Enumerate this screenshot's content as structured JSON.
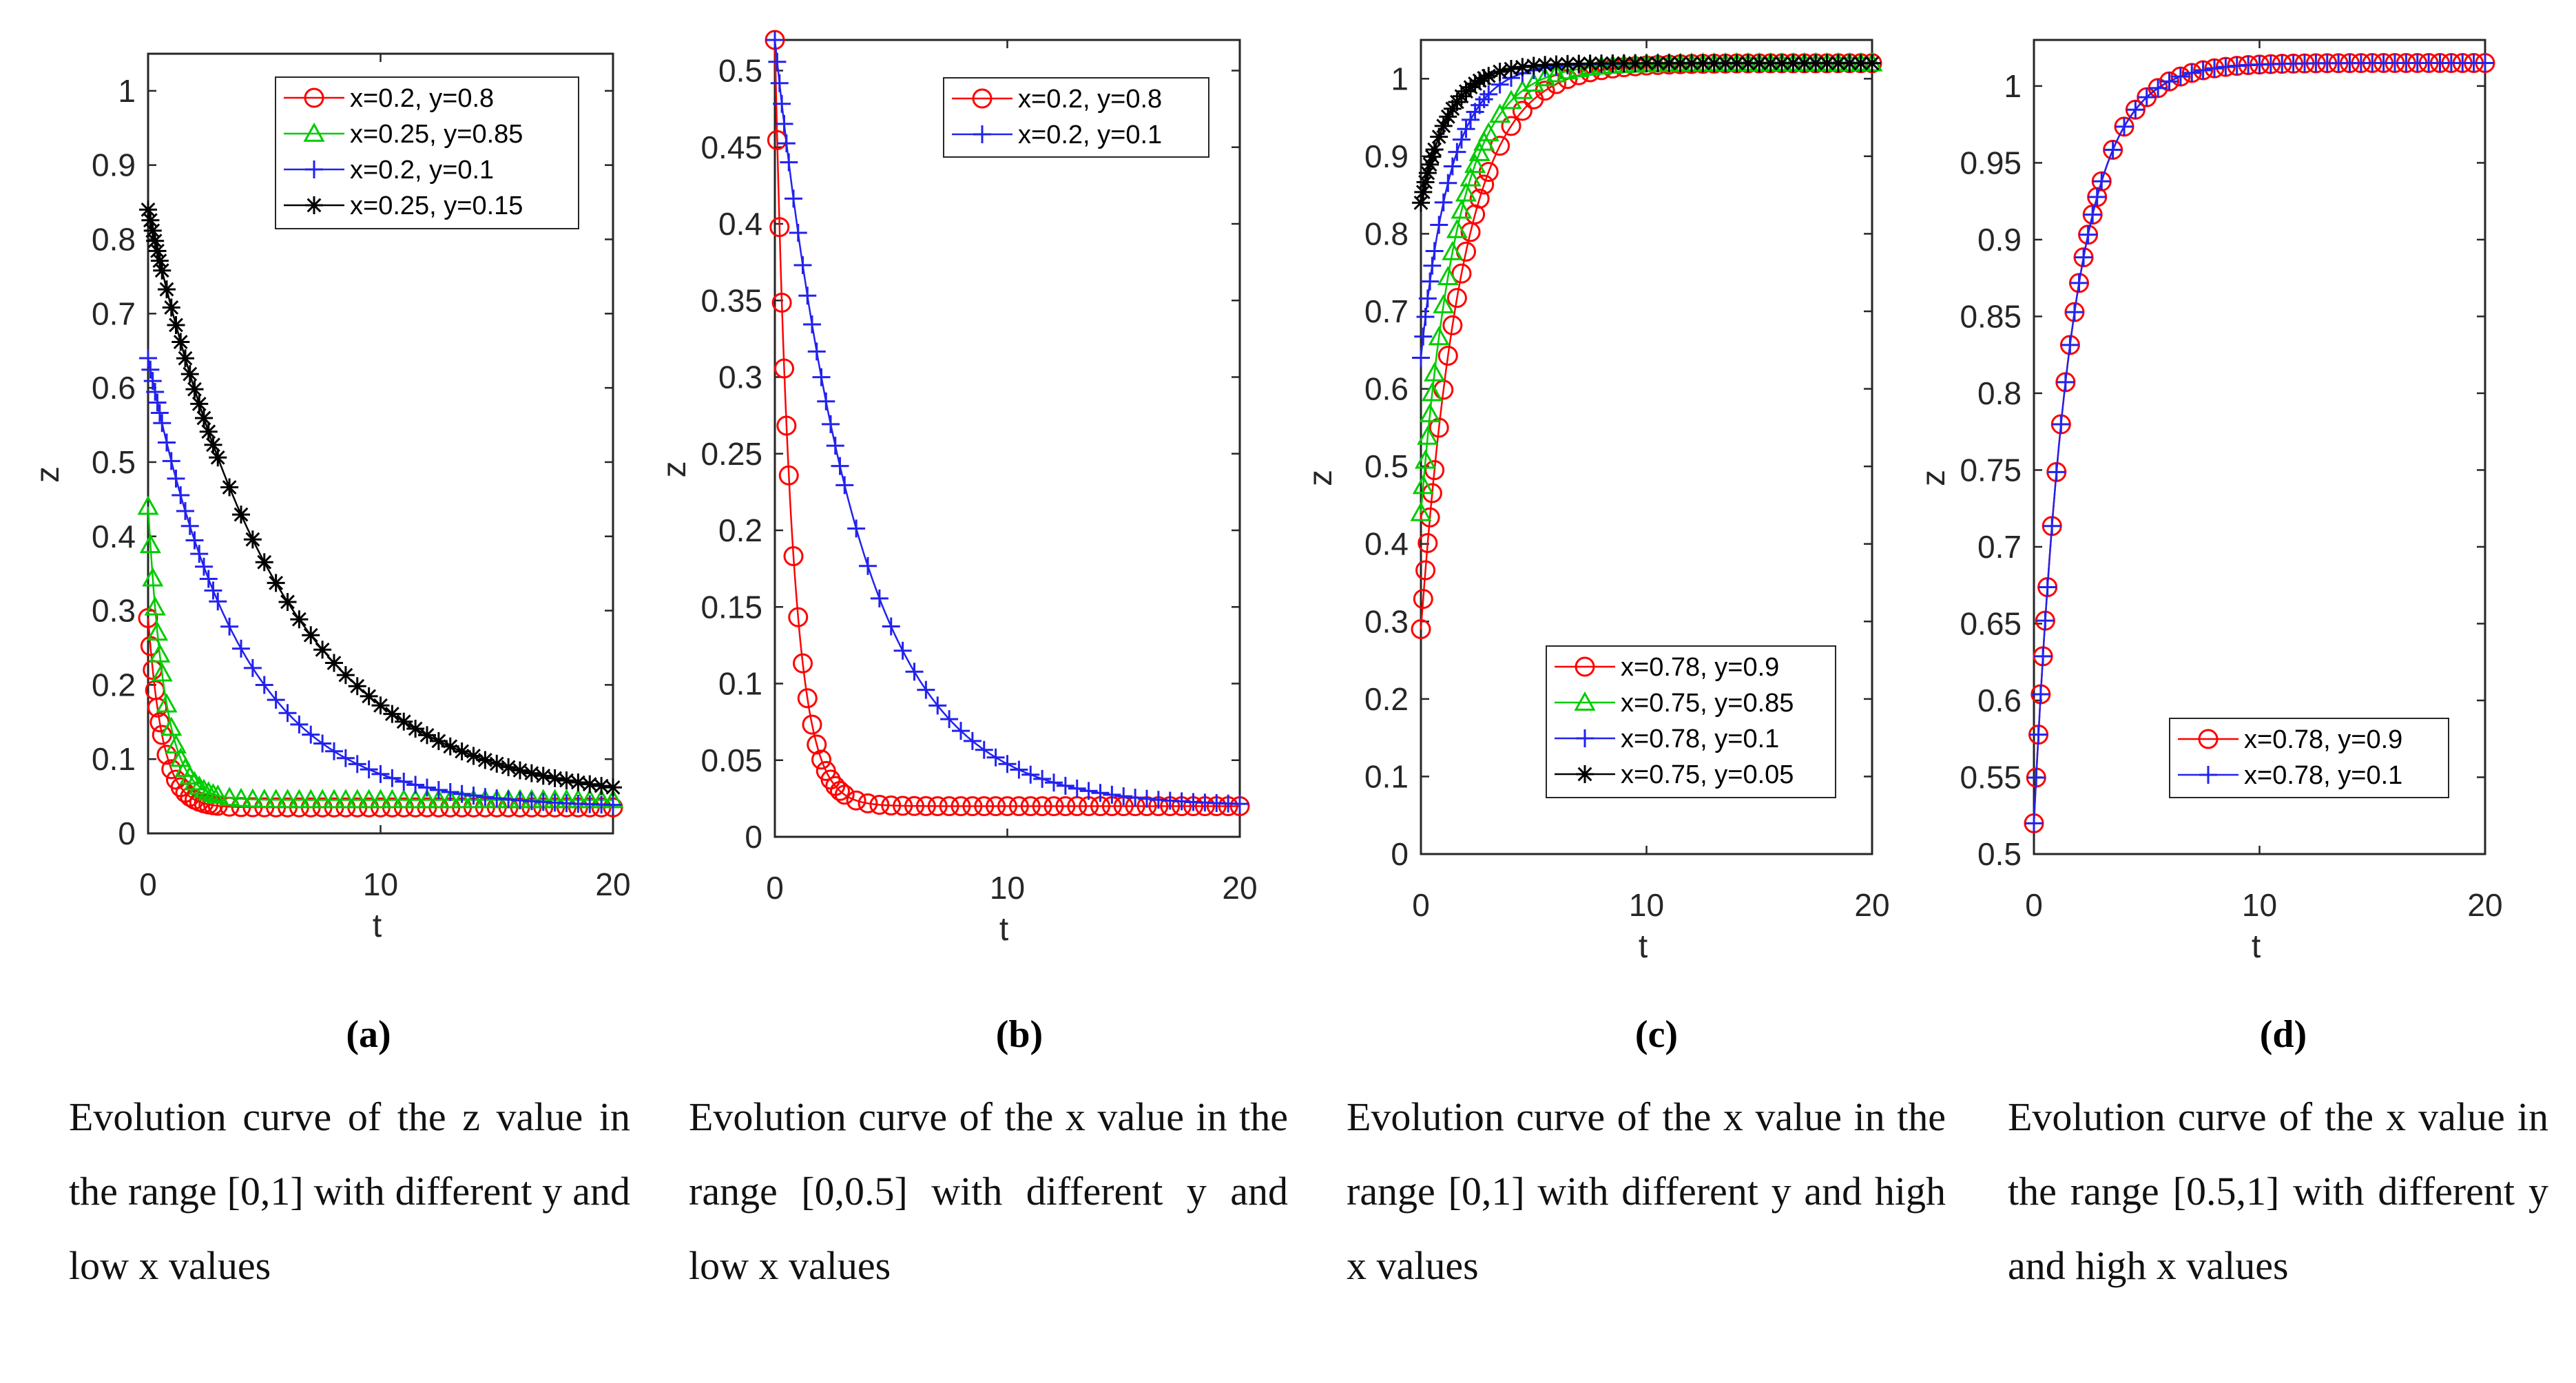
{
  "colors": {
    "red": "#ff0000",
    "green": "#00cc00",
    "blue": "#2222ee",
    "black": "#000000",
    "axis": "#262626"
  },
  "panels": [
    {
      "label": "(a)",
      "caption": "Evolution curve of the z value in the range [0,1] with different y and low x values"
    },
    {
      "label": "(b)",
      "caption": "Evolution curve of the x value in the range [0,0.5] with different y and low x values"
    },
    {
      "label": "(c)",
      "caption": "Evolution curve of the x value in the range [0,1] with different y and high x values"
    },
    {
      "label": "(d)",
      "caption": "Evolution curve of the x value in the range [0.5,1] with different y and high x values"
    }
  ],
  "chart_data": [
    {
      "type": "line",
      "xlabel": "t",
      "ylabel": "z",
      "xlim": [
        0,
        20
      ],
      "ylim": [
        0,
        1.05
      ],
      "xticks": [
        0,
        10,
        20
      ],
      "xtick_labels": [
        "0",
        "10",
        "20"
      ],
      "yticks": [
        0,
        0.1,
        0.2,
        0.3,
        0.4,
        0.5,
        0.6,
        0.7,
        0.8,
        0.9,
        1
      ],
      "ytick_labels": [
        "0",
        "0.1",
        "0.2",
        "0.3",
        "0.4",
        "0.5",
        "0.6",
        "0.7",
        "0.8",
        "0.9",
        "1"
      ],
      "legend_position": "top-right",
      "grid": false,
      "series": [
        {
          "name": "x=0.2, y=0.8",
          "color": "red",
          "marker": "circle",
          "start": 0.29,
          "end": 0.035,
          "rate": 1.6
        },
        {
          "name": "x=0.25, y=0.85",
          "color": "green",
          "marker": "triangle",
          "start": 0.44,
          "end": 0.045,
          "rate": 1.4
        },
        {
          "name": "x=0.2, y=0.1",
          "color": "blue",
          "marker": "plus",
          "start": 0.64,
          "end": 0.035,
          "rate": 0.26
        },
        {
          "name": "x=0.25, y=0.15",
          "color": "black",
          "marker": "star",
          "start": 0.84,
          "end": 0.04,
          "rate": 0.18
        }
      ]
    },
    {
      "type": "line",
      "xlabel": "t",
      "ylabel": "z",
      "xlim": [
        0,
        20
      ],
      "ylim": [
        0,
        0.52
      ],
      "xticks": [
        0,
        10,
        20
      ],
      "xtick_labels": [
        "0",
        "10",
        "20"
      ],
      "yticks": [
        0,
        0.05,
        0.1,
        0.15,
        0.2,
        0.25,
        0.3,
        0.35,
        0.4,
        0.45,
        0.5
      ],
      "ytick_labels": [
        "0",
        "0.05",
        "0.1",
        "0.15",
        "0.2",
        "0.25",
        "0.3",
        "0.35",
        "0.4",
        "0.45",
        "0.5"
      ],
      "legend_position": "top-right",
      "grid": false,
      "series": [
        {
          "name": "x=0.2, y=0.8",
          "color": "red",
          "marker": "circle",
          "start": 0.52,
          "end": 0.02,
          "rate": 1.4
        },
        {
          "name": "x=0.2, y=0.1",
          "color": "blue",
          "marker": "plus",
          "start": 0.52,
          "end": 0.02,
          "rate": 0.29
        }
      ]
    },
    {
      "type": "line",
      "xlabel": "t",
      "ylabel": "z",
      "xlim": [
        0,
        20
      ],
      "ylim": [
        0,
        1.05
      ],
      "xticks": [
        0,
        10,
        20
      ],
      "xtick_labels": [
        "0",
        "10",
        "20"
      ],
      "yticks": [
        0,
        0.1,
        0.2,
        0.3,
        0.4,
        0.5,
        0.6,
        0.7,
        0.8,
        0.9,
        1
      ],
      "ytick_labels": [
        "0",
        "0.1",
        "0.2",
        "0.3",
        "0.4",
        "0.5",
        "0.6",
        "0.7",
        "0.8",
        "0.9",
        "1"
      ],
      "legend_position": "bottom-right",
      "grid": false,
      "series": [
        {
          "name": "x=0.78, y=0.9",
          "color": "red",
          "marker": "circle",
          "start": 0.29,
          "end": 1.02,
          "rate": 0.55
        },
        {
          "name": "x=0.75, y=0.85",
          "color": "green",
          "marker": "triangle",
          "start": 0.44,
          "end": 1.02,
          "rate": 0.62
        },
        {
          "name": "x=0.78, y=0.1",
          "color": "blue",
          "marker": "plus",
          "start": 0.64,
          "end": 1.02,
          "rate": 0.75
        },
        {
          "name": "x=0.75, y=0.05",
          "color": "black",
          "marker": "star",
          "start": 0.84,
          "end": 1.02,
          "rate": 0.8
        }
      ]
    },
    {
      "type": "line",
      "xlabel": "t",
      "ylabel": "z",
      "xlim": [
        0,
        20
      ],
      "ylim": [
        0.5,
        1.03
      ],
      "xticks": [
        0,
        10,
        20
      ],
      "xtick_labels": [
        "0",
        "10",
        "20"
      ],
      "yticks": [
        0.5,
        0.55,
        0.6,
        0.65,
        0.7,
        0.75,
        0.8,
        0.85,
        0.9,
        0.95,
        1
      ],
      "ytick_labels": [
        "0.5",
        "0.55",
        "0.6",
        "0.65",
        "0.7",
        "0.75",
        "0.8",
        "0.85",
        "0.9",
        "0.95",
        "1"
      ],
      "legend_position": "bottom-right",
      "grid": false,
      "series": [
        {
          "name": "x=0.78, y=0.9",
          "color": "red",
          "marker": "circle",
          "start": 0.52,
          "end": 1.015,
          "rate": 0.62
        },
        {
          "name": "x=0.78, y=0.1",
          "color": "blue",
          "marker": "plus",
          "start": 0.52,
          "end": 1.015,
          "rate": 0.62
        }
      ]
    }
  ]
}
